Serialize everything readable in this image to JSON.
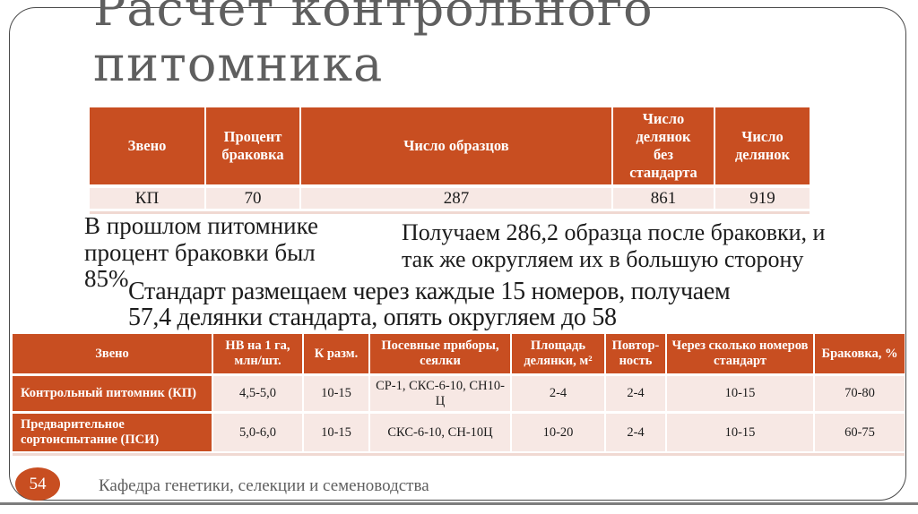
{
  "slide": {
    "title": "Расчет контрольного питомника",
    "page_number": "54",
    "footer": "Кафедра генетики, селекции и семеноводства"
  },
  "colors": {
    "accent": "#C84E21",
    "row_pink": "#F7E8E4",
    "strip_pink": "#F0D9D2",
    "title_gray": "#5F5F5F",
    "text_dark": "#1C1C1C"
  },
  "notes": {
    "note1": "В прошлом питомнике процент браковки был 85%",
    "note2": "Получаем 286,2 образца после браковки, и так же округляем их в большую сторону",
    "note3": "Стандарт размещаем через каждые 15 номеров, получаем 57,4 делянки стандарта, опять округляем до 58"
  },
  "table1": {
    "headers": [
      "Звено",
      "Процент браковка",
      "Число образцов",
      "Число делянок без стандарта",
      "Число делянок"
    ],
    "rows": [
      [
        "КП",
        "70",
        "287",
        "861",
        "919"
      ]
    ]
  },
  "table2": {
    "headers": [
      "Звено",
      "НВ на 1 га, млн/шт.",
      "К разм.",
      "Посевные приборы, сеялки",
      "Площадь делянки, м²",
      "Повтор-ность",
      "Через сколько номеров стандарт",
      "Браковка, %"
    ],
    "rows": [
      [
        "Контрольный питомник (КП)",
        "4,5-5,0",
        "10-15",
        "СР-1, СКС-6-10, СН10-Ц",
        "2-4",
        "2-4",
        "10-15",
        "70-80"
      ],
      [
        "Предварительное сортоиспытание (ПСИ)",
        "5,0-6,0",
        "10-15",
        "СКС-6-10, СН-10Ц",
        "10-20",
        "2-4",
        "10-15",
        "60-75"
      ]
    ]
  }
}
